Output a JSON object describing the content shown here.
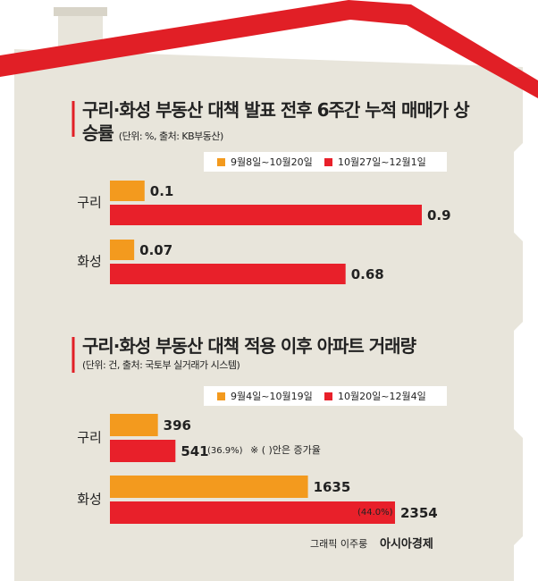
{
  "chart_data": [
    {
      "type": "bar",
      "orientation": "horizontal",
      "title": "구리·화성 부동산 대책 발표 전후 6주간 누적 매매가 상승률",
      "subtitle": "(단위: %, 출처: KB부동산)",
      "categories": [
        "구리",
        "화성"
      ],
      "series": [
        {
          "name": "9월8일~10월20일",
          "color": "#f39a1e",
          "values": [
            0.1,
            0.07
          ]
        },
        {
          "name": "10월27일~12월1일",
          "color": "#e8202a",
          "values": [
            0.9,
            0.68
          ]
        }
      ]
    },
    {
      "type": "bar",
      "orientation": "horizontal",
      "title": "구리·화성 부동산 대책 적용 이후 아파트 거래량",
      "subtitle": "(단위: 건, 출처: 국토부 실거래가 시스템)",
      "categories": [
        "구리",
        "화성"
      ],
      "series": [
        {
          "name": "9월4일~10월19일",
          "color": "#f39a1e",
          "values": [
            396,
            1635
          ]
        },
        {
          "name": "10월20일~12월4일",
          "color": "#e8202a",
          "values": [
            541,
            2354
          ]
        }
      ],
      "annotations": [
        "(36.9%)",
        "(44.0%)",
        "※ ( )안은 증가율"
      ]
    }
  ],
  "credit": {
    "graphic": "그래픽 이주룽",
    "brand": "아시아경제"
  }
}
